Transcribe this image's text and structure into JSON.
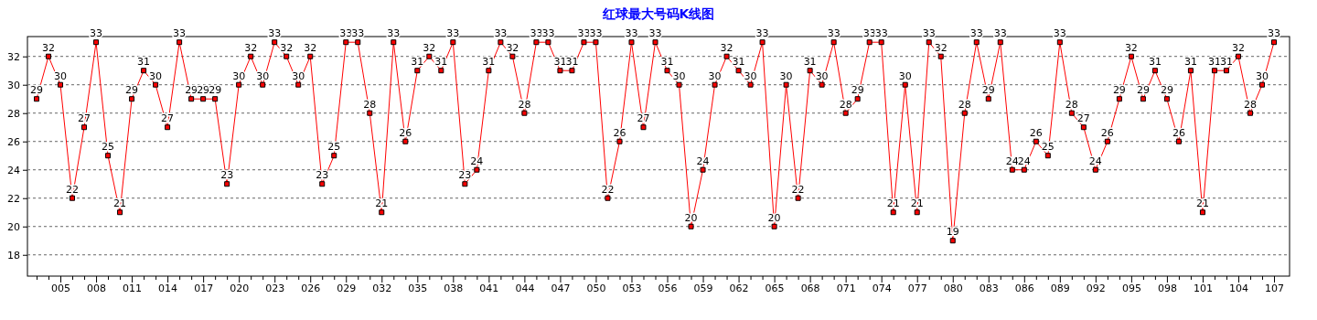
{
  "chart_data": {
    "type": "line",
    "title": "红球最大号码K线图",
    "categories": [
      null,
      null,
      "005",
      null,
      null,
      "008",
      null,
      null,
      "011",
      null,
      null,
      "014",
      null,
      null,
      "017",
      null,
      null,
      "020",
      null,
      null,
      "023",
      null,
      null,
      "026",
      null,
      null,
      "029",
      null,
      null,
      "032",
      null,
      null,
      "035",
      null,
      null,
      "038",
      null,
      null,
      "041",
      null,
      null,
      "044",
      null,
      null,
      "047",
      null,
      null,
      "050",
      null,
      null,
      "053",
      null,
      null,
      "056",
      null,
      null,
      "059",
      null,
      null,
      "062",
      null,
      null,
      "065",
      null,
      null,
      "068",
      null,
      null,
      "071",
      null,
      null,
      "074",
      null,
      null,
      "077",
      null,
      null,
      "080",
      null,
      null,
      "083",
      null,
      null,
      "086",
      null,
      null,
      "089",
      null,
      null,
      "092",
      null,
      null,
      "095",
      null,
      null,
      "098",
      null,
      null,
      "101",
      null,
      null,
      "104",
      null,
      null,
      "107"
    ],
    "series": [
      {
        "color": "#ff0000",
        "values": [
          29,
          32,
          30,
          22,
          27,
          33,
          25,
          21,
          29,
          31,
          30,
          27,
          33,
          29,
          29,
          29,
          23,
          30,
          32,
          30,
          33,
          32,
          30,
          32,
          23,
          25,
          33,
          33,
          28,
          21,
          33,
          26,
          31,
          32,
          31,
          33,
          23,
          24,
          31,
          33,
          32,
          28,
          33,
          33,
          31,
          31,
          33,
          33,
          22,
          26,
          33,
          27,
          33,
          31,
          30,
          20,
          24,
          30,
          32,
          31,
          30,
          33,
          20,
          30,
          22,
          31,
          30,
          33,
          28,
          29,
          33,
          33,
          21,
          30,
          21,
          33,
          32,
          19,
          28,
          33,
          29,
          33,
          24,
          24,
          26,
          25,
          33,
          28,
          27,
          24,
          26,
          29,
          32,
          29,
          31,
          29,
          26,
          31,
          21,
          31,
          31,
          32,
          28,
          30,
          33
        ]
      }
    ],
    "ylim": [
      16.5,
      33.4
    ],
    "yticks": [
      18,
      20,
      22,
      24,
      26,
      28,
      30,
      32
    ],
    "grid": "y",
    "marker": "square",
    "line_style": "solid",
    "data_labels": true
  }
}
